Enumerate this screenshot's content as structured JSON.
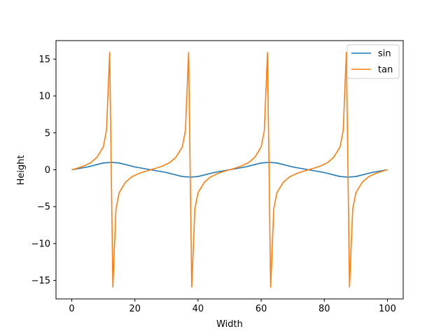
{
  "chart_data": {
    "type": "line",
    "title": "",
    "xlabel": "Width",
    "ylabel": "Height",
    "xlim": [
      -5,
      105
    ],
    "ylim": [
      -17.5,
      17.5
    ],
    "x_ticks": [
      0,
      20,
      40,
      60,
      80,
      100
    ],
    "y_ticks": [
      -15,
      -10,
      -5,
      0,
      5,
      10,
      15
    ],
    "x_tick_labels": [
      "0",
      "20",
      "40",
      "60",
      "80",
      "100"
    ],
    "y_tick_labels": [
      "−15",
      "−10",
      "−5",
      "0",
      "5",
      "10",
      "15"
    ],
    "legend_position": "top-right",
    "grid": false,
    "series": [
      {
        "name": "sin",
        "color": "#1f77b4",
        "x": [
          0,
          5,
          10,
          12.5,
          15,
          20,
          25,
          30,
          35,
          37.5,
          40,
          45,
          50,
          55,
          60,
          62.5,
          65,
          70,
          75,
          80,
          85,
          87.5,
          90,
          95,
          100
        ],
        "y": [
          0,
          0.38,
          0.92,
          1.0,
          0.92,
          0.38,
          0,
          -0.38,
          -0.92,
          -1.0,
          -0.92,
          -0.38,
          0,
          0.38,
          0.92,
          1.0,
          0.92,
          0.38,
          0,
          -0.38,
          -0.92,
          -1.0,
          -0.92,
          -0.38,
          0
        ]
      },
      {
        "name": "tan",
        "color": "#ff7f0e",
        "x": [
          0,
          2,
          4,
          6,
          8,
          10,
          11,
          12,
          13,
          14,
          15,
          17,
          19,
          21,
          23,
          25,
          27,
          29,
          31,
          33,
          35,
          36,
          37,
          38,
          39,
          40,
          42,
          44,
          46,
          48,
          50,
          52,
          54,
          56,
          58,
          60,
          61,
          62,
          63,
          64,
          65,
          67,
          69,
          71,
          73,
          75,
          77,
          79,
          81,
          83,
          85,
          86,
          87,
          88,
          89,
          90,
          92,
          94,
          96,
          98,
          100
        ],
        "y": [
          0,
          0.25,
          0.55,
          0.96,
          1.7,
          3.1,
          5.3,
          15.9,
          -15.9,
          -5.3,
          -3.1,
          -1.7,
          -0.96,
          -0.55,
          -0.25,
          0,
          0.25,
          0.55,
          0.96,
          1.7,
          3.1,
          5.3,
          15.9,
          -15.9,
          -5.3,
          -3.1,
          -1.7,
          -0.96,
          -0.55,
          -0.25,
          0,
          0.25,
          0.55,
          0.96,
          1.7,
          3.1,
          5.3,
          15.9,
          -15.9,
          -5.3,
          -3.1,
          -1.7,
          -0.96,
          -0.55,
          -0.25,
          0,
          0.25,
          0.55,
          0.96,
          1.7,
          3.1,
          5.3,
          15.9,
          -15.9,
          -5.3,
          -3.1,
          -1.7,
          -0.96,
          -0.55,
          -0.25,
          0
        ]
      }
    ]
  }
}
